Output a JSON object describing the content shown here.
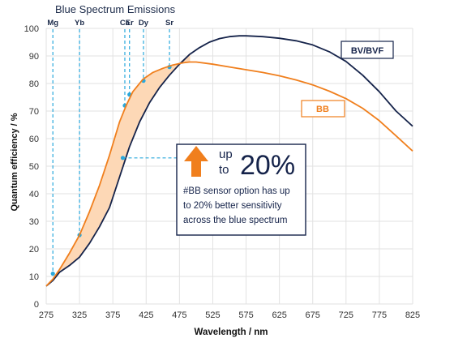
{
  "chart_data": {
    "type": "line",
    "title": "Blue Spectrum Emissions",
    "xlabel": "Wavelength / nm",
    "ylabel": "Quantum efficiency / %",
    "xlim": [
      275,
      825
    ],
    "ylim": [
      0,
      100
    ],
    "xticks": [
      275,
      325,
      375,
      425,
      475,
      525,
      575,
      625,
      675,
      725,
      775,
      825
    ],
    "yticks": [
      0,
      10,
      20,
      30,
      40,
      50,
      60,
      70,
      80,
      90,
      100
    ],
    "grid": true,
    "colors": {
      "bb": "#f07f1d",
      "bv": "#15234a",
      "fill": "#fdd8b6",
      "marker": "#29a8dc",
      "grid": "#e2e2e2"
    },
    "series": [
      {
        "name": "BV/BVF",
        "color": "#15234a",
        "x": [
          275,
          285,
          295,
          310,
          325,
          340,
          355,
          370,
          385,
          400,
          415,
          430,
          445,
          460,
          475,
          490,
          505,
          520,
          535,
          550,
          565,
          575,
          600,
          625,
          650,
          675,
          700,
          725,
          750,
          775,
          800,
          825
        ],
        "y": [
          6.5,
          8.5,
          11.5,
          14,
          17,
          22,
          28,
          35,
          46,
          57,
          66,
          73,
          78.5,
          83,
          87,
          90.5,
          93,
          95,
          96.3,
          97,
          97.3,
          97.3,
          97,
          96.4,
          95.5,
          94,
          91.5,
          88,
          83,
          77,
          70,
          64.5
        ]
      },
      {
        "name": "BB",
        "color": "#f07f1d",
        "x": [
          275,
          285,
          295,
          310,
          325,
          340,
          355,
          370,
          385,
          395,
          405,
          420,
          435,
          450,
          465,
          480,
          490,
          500,
          525,
          550,
          575,
          600,
          625,
          650,
          675,
          700,
          725,
          750,
          775,
          800,
          825
        ],
        "y": [
          6.5,
          9,
          12.5,
          18.5,
          25,
          33.5,
          43,
          54,
          66,
          72,
          77,
          81.5,
          84,
          85.5,
          86.7,
          87.5,
          87.8,
          87.8,
          87,
          86,
          85,
          84,
          82.8,
          81.3,
          79.5,
          77.2,
          74.5,
          71,
          66.5,
          61,
          55.5
        ]
      }
    ],
    "emission_lines": [
      {
        "element": "Mg",
        "wavelength": 285,
        "qe": 11
      },
      {
        "element": "Yb",
        "wavelength": 325,
        "qe": 25
      },
      {
        "element": "Ca",
        "wavelength": 393,
        "qe": 72
      },
      {
        "element": "Er",
        "wavelength": 400,
        "qe": 76
      },
      {
        "element": "Dy",
        "wavelength": 421,
        "qe": 81
      },
      {
        "element": "Sr",
        "wavelength": 460,
        "qe": 86
      }
    ],
    "annotation": {
      "arrow_from": {
        "x": 390,
        "y": 53
      },
      "headline_small": "up\nto",
      "headline_big": "20%",
      "lines": [
        "#BB sensor option has up",
        "to 20% better sensitivity",
        "across the blue spectrum"
      ]
    },
    "legend_labels": {
      "bv": "BV/BVF",
      "bb": "BB"
    }
  }
}
